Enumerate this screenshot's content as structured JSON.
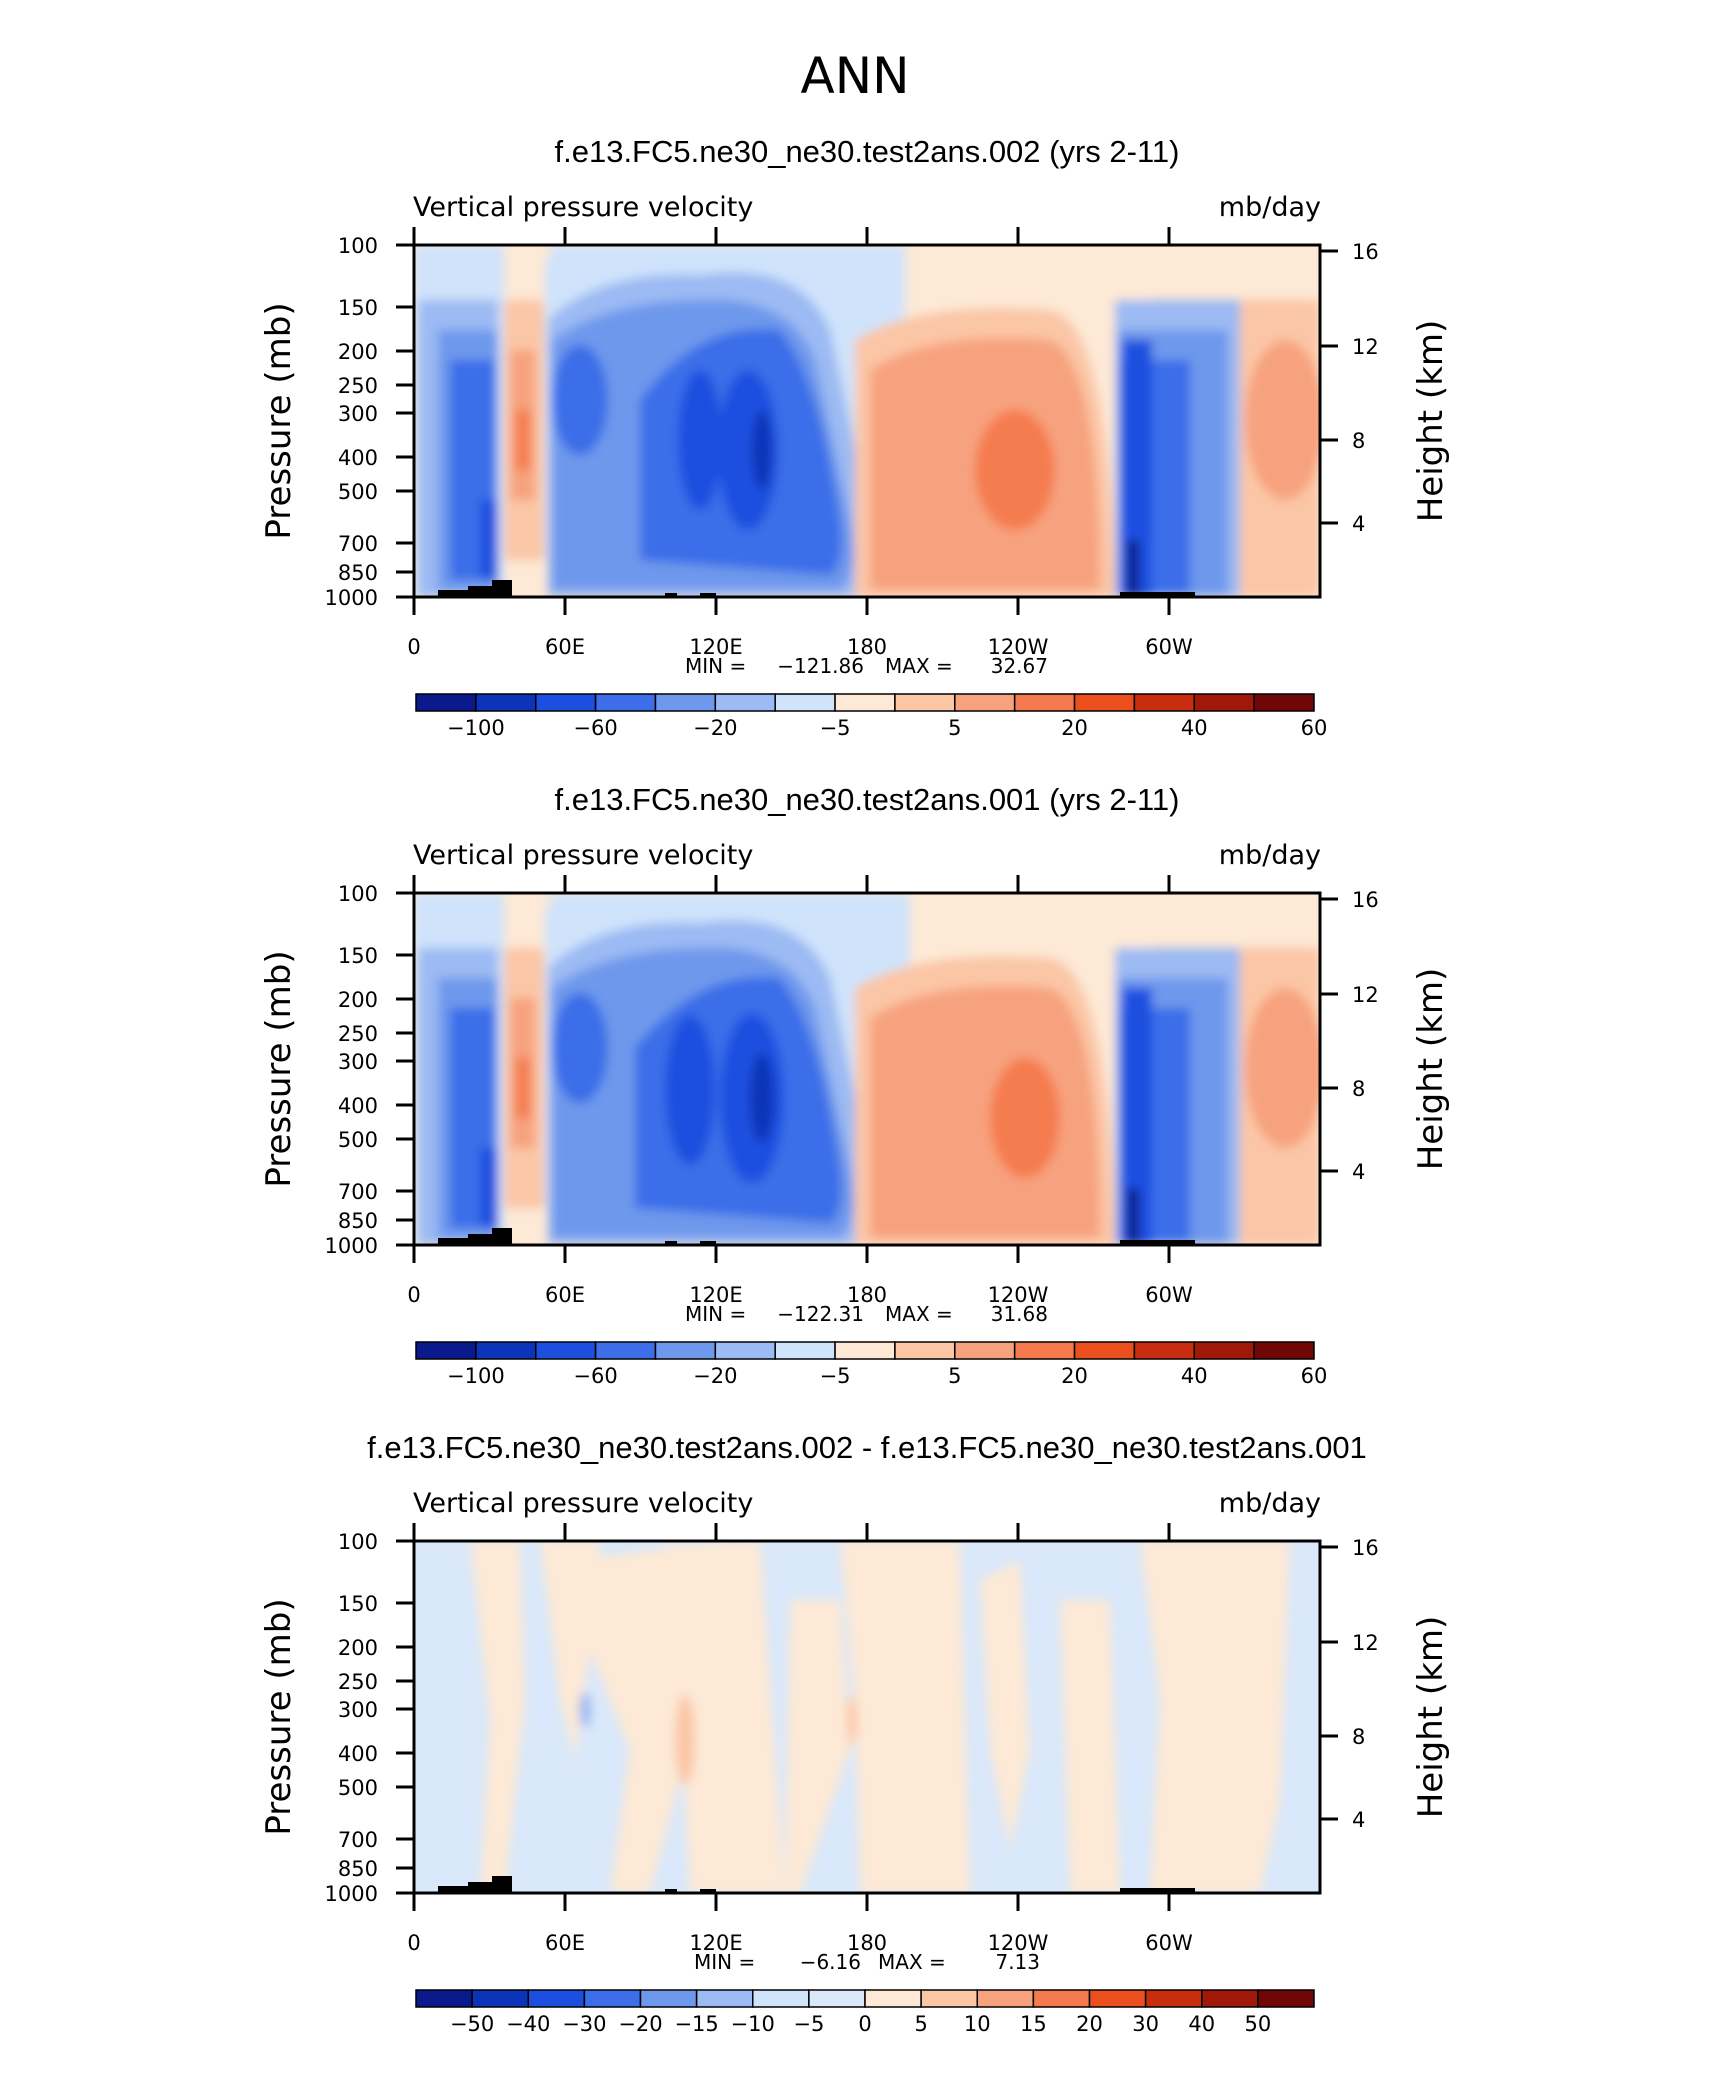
{
  "figure": {
    "title": "ANN"
  },
  "chart_data": [
    {
      "type": "heatmap",
      "title": "f.e13.FC5.ne30_ne30.test2ans.002 (yrs 2-11)",
      "left_label": "Vertical pressure velocity",
      "right_label": "mb/day",
      "ylabel": "Pressure (mb)",
      "ylabel_right": "Height (km)",
      "x_ticks": [
        "0",
        "60E",
        "120E",
        "180",
        "120W",
        "60W"
      ],
      "y_ticks": [
        "100",
        "150",
        "200",
        "250",
        "300",
        "400",
        "500",
        "700",
        "850",
        "1000"
      ],
      "y_right_ticks": [
        "16",
        "12",
        "8",
        "4"
      ],
      "stats": {
        "min_label": "MIN =",
        "min_value": "−121.86",
        "max_label": "MAX =",
        "max_value": "32.67"
      },
      "colorbar": {
        "labels": [
          "−100",
          "−60",
          "−20",
          "−5",
          "5",
          "20",
          "40",
          "60"
        ],
        "colors": [
          "#0a1a8c",
          "#0c34b8",
          "#1c4fe0",
          "#3b6ee8",
          "#6e98ec",
          "#9cbaf3",
          "#cfe3fb",
          "#fde9d6",
          "#fbc6a6",
          "#f7a27e",
          "#f57b4f",
          "#ec4f1e",
          "#c92d0f",
          "#a01808",
          "#700606"
        ]
      }
    },
    {
      "type": "heatmap",
      "title": "f.e13.FC5.ne30_ne30.test2ans.001 (yrs 2-11)",
      "left_label": "Vertical pressure velocity",
      "right_label": "mb/day",
      "ylabel": "Pressure (mb)",
      "ylabel_right": "Height (km)",
      "x_ticks": [
        "0",
        "60E",
        "120E",
        "180",
        "120W",
        "60W"
      ],
      "y_ticks": [
        "100",
        "150",
        "200",
        "250",
        "300",
        "400",
        "500",
        "700",
        "850",
        "1000"
      ],
      "y_right_ticks": [
        "16",
        "12",
        "8",
        "4"
      ],
      "stats": {
        "min_label": "MIN =",
        "min_value": "−122.31",
        "max_label": "MAX =",
        "max_value": "31.68"
      },
      "colorbar": {
        "labels": [
          "−100",
          "−60",
          "−20",
          "−5",
          "5",
          "20",
          "40",
          "60"
        ],
        "colors": [
          "#0a1a8c",
          "#0c34b8",
          "#1c4fe0",
          "#3b6ee8",
          "#6e98ec",
          "#9cbaf3",
          "#cfe3fb",
          "#fde9d6",
          "#fbc6a6",
          "#f7a27e",
          "#f57b4f",
          "#ec4f1e",
          "#c92d0f",
          "#a01808",
          "#700606"
        ]
      }
    },
    {
      "type": "heatmap",
      "title": "f.e13.FC5.ne30_ne30.test2ans.002 - f.e13.FC5.ne30_ne30.test2ans.001",
      "left_label": "Vertical pressure velocity",
      "right_label": "mb/day",
      "ylabel": "Pressure (mb)",
      "ylabel_right": "Height (km)",
      "x_ticks": [
        "0",
        "60E",
        "120E",
        "180",
        "120W",
        "60W"
      ],
      "y_ticks": [
        "100",
        "150",
        "200",
        "250",
        "300",
        "400",
        "500",
        "700",
        "850",
        "1000"
      ],
      "y_right_ticks": [
        "16",
        "12",
        "8",
        "4"
      ],
      "stats": {
        "min_label": "MIN =",
        "min_value": "−6.16",
        "max_label": "MAX =",
        "max_value": "7.13"
      },
      "colorbar": {
        "labels": [
          "−50",
          "−40",
          "−30",
          "−20",
          "−15",
          "−10",
          "−5",
          "0",
          "5",
          "10",
          "15",
          "20",
          "30",
          "40",
          "50"
        ],
        "colors": [
          "#0a1a8c",
          "#0c34b8",
          "#1c4fe0",
          "#3b6ee8",
          "#6e98ec",
          "#9cbaf3",
          "#cfe3fb",
          "#d9e8fa",
          "#fde9d6",
          "#fbc6a6",
          "#f7a27e",
          "#f57b4f",
          "#ec4f1e",
          "#c92d0f",
          "#a01808",
          "#700606"
        ]
      }
    }
  ]
}
